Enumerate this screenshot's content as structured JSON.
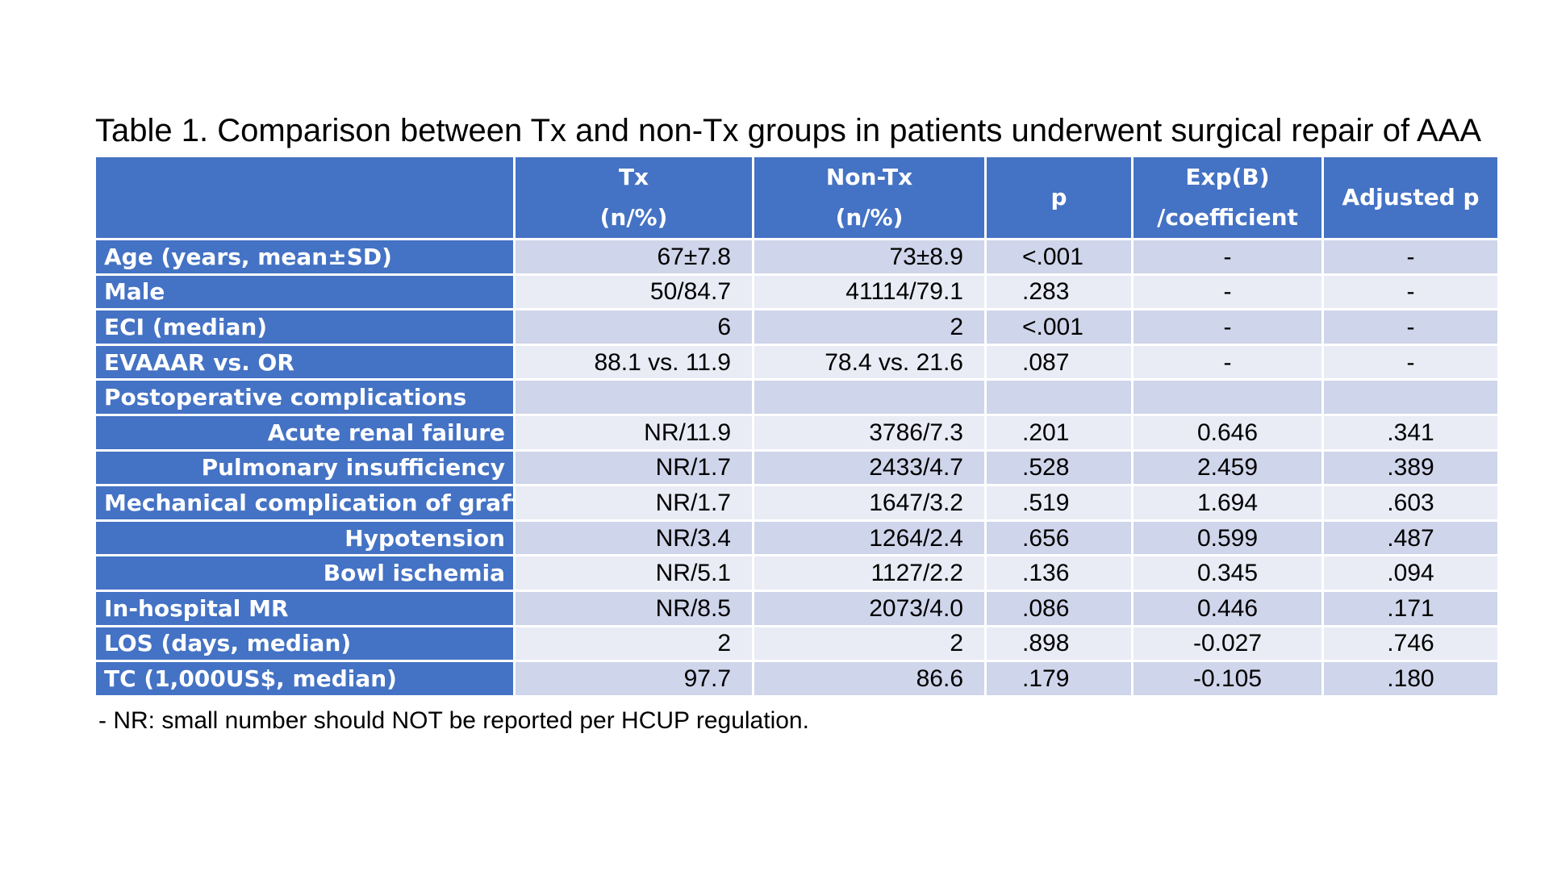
{
  "title": "Table 1. Comparison between Tx and non-Tx groups in patients underwent surgical repair of AAA",
  "header": {
    "col0": "",
    "col1_line1": "Tx",
    "col1_line2": "(n/%)",
    "col2_line1": "Non-Tx",
    "col2_line2": "(n/%)",
    "col3": "p",
    "col4_line1": "Exp(B)",
    "col4_line2": "/coefficient",
    "col5": "Adjusted p"
  },
  "rows": [
    {
      "label": "Age (years, mean±SD)",
      "tx": "67±7.8",
      "nontx": "73±8.9",
      "p": "<.001",
      "expb": "-",
      "adjp": "-"
    },
    {
      "label": "Male",
      "tx": "50/84.7",
      "nontx": "41114/79.1",
      "p": ".283",
      "expb": "-",
      "adjp": "-"
    },
    {
      "label": "ECI (median)",
      "tx": "6",
      "nontx": "2",
      "p": "<.001",
      "expb": "-",
      "adjp": "-"
    },
    {
      "label": "EVAAAR vs. OR",
      "tx": "88.1 vs. 11.9",
      "nontx": "78.4 vs. 21.6",
      "p": ".087",
      "expb": "-",
      "adjp": "-"
    },
    {
      "label": "Postoperative complications",
      "tx": "",
      "nontx": "",
      "p": "",
      "expb": "",
      "adjp": ""
    },
    {
      "label": "Acute renal failure",
      "tx": "NR/11.9",
      "nontx": "3786/7.3",
      "p": ".201",
      "expb": "0.646",
      "adjp": ".341"
    },
    {
      "label": "Pulmonary insufficiency",
      "tx": "NR/1.7",
      "nontx": "2433/4.7",
      "p": ".528",
      "expb": "2.459",
      "adjp": ".389"
    },
    {
      "label": "Mechanical complication of graft",
      "tx": "NR/1.7",
      "nontx": "1647/3.2",
      "p": ".519",
      "expb": "1.694",
      "adjp": ".603"
    },
    {
      "label": "Hypotension",
      "tx": "NR/3.4",
      "nontx": "1264/2.4",
      "p": ".656",
      "expb": "0.599",
      "adjp": ".487"
    },
    {
      "label": "Bowl ischemia",
      "tx": "NR/5.1",
      "nontx": "1127/2.2",
      "p": ".136",
      "expb": "0.345",
      "adjp": ".094"
    },
    {
      "label": "In-hospital MR",
      "tx": "NR/8.5",
      "nontx": "2073/4.0",
      "p": ".086",
      "expb": "0.446",
      "adjp": ".171"
    },
    {
      "label": "LOS (days, median)",
      "tx": "2",
      "nontx": "2",
      "p": ".898",
      "expb": "-0.027",
      "adjp": ".746"
    },
    {
      "label": "TC (1,000US$, median)",
      "tx": "97.7",
      "nontx": "86.6",
      "p": ".179",
      "expb": "-0.105",
      "adjp": ".180"
    }
  ],
  "footnote": "- NR: small number should NOT be reported per HCUP regulation.",
  "colors": {
    "header_bg": "#4472c4",
    "row_band_dark": "#cfd5ea",
    "row_band_light": "#e9ebf5",
    "header_text": "#ffffff"
  }
}
